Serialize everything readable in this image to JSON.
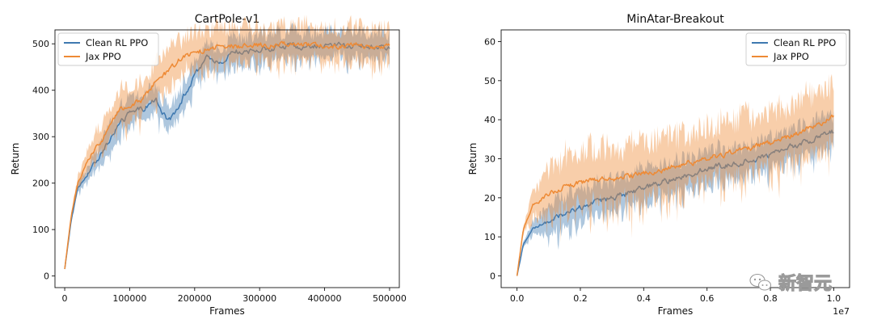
{
  "colors": {
    "clean": "#3f79b0",
    "jax": "#ee8a35"
  },
  "watermark": {
    "text": "新智元",
    "icon": "wechat-icon"
  },
  "chart_data": [
    {
      "type": "line",
      "title": "CartPole-v1",
      "xlabel": "Frames",
      "ylabel": "Return",
      "xlim": [
        -15000,
        515000
      ],
      "ylim": [
        -25,
        530
      ],
      "xticks": [
        0,
        100000,
        200000,
        300000,
        400000,
        500000
      ],
      "xtick_labels": [
        "0",
        "100000",
        "200000",
        "300000",
        "400000",
        "500000"
      ],
      "yticks": [
        0,
        100,
        200,
        300,
        400,
        500
      ],
      "ytick_labels": [
        "0",
        "100",
        "200",
        "300",
        "400",
        "500"
      ],
      "offset_text": "",
      "grid": false,
      "legend": "top-left",
      "series": [
        {
          "name": "Clean RL PPO",
          "color": "#3f79b0",
          "x": [
            0,
            10000,
            20000,
            40000,
            60000,
            80000,
            100000,
            120000,
            140000,
            160000,
            180000,
            200000,
            220000,
            240000,
            260000,
            280000,
            300000,
            350000,
            400000,
            450000,
            500000
          ],
          "y": [
            15,
            120,
            190,
            230,
            270,
            320,
            350,
            360,
            380,
            330,
            380,
            430,
            470,
            460,
            485,
            480,
            490,
            495,
            495,
            497,
            490
          ],
          "band": 35
        },
        {
          "name": "Jax PPO",
          "color": "#ee8a35",
          "x": [
            0,
            10000,
            20000,
            40000,
            60000,
            80000,
            100000,
            120000,
            140000,
            160000,
            180000,
            200000,
            220000,
            240000,
            260000,
            280000,
            300000,
            350000,
            400000,
            450000,
            500000
          ],
          "y": [
            15,
            130,
            200,
            260,
            300,
            350,
            370,
            380,
            420,
            440,
            470,
            480,
            490,
            495,
            495,
            495,
            497,
            497,
            497,
            498,
            492
          ],
          "band": 45
        }
      ]
    },
    {
      "type": "line",
      "title": "MinAtar-Breakout",
      "xlabel": "Frames",
      "ylabel": "Return",
      "xlim": [
        -0.05,
        1.05
      ],
      "ylim": [
        -3,
        63
      ],
      "xticks": [
        0.0,
        0.2,
        0.4,
        0.6,
        0.8,
        1.0
      ],
      "xtick_labels": [
        "0.0",
        "0.2",
        "0.4",
        "0.6",
        "0.8",
        "1.0"
      ],
      "yticks": [
        0,
        10,
        20,
        30,
        40,
        50,
        60
      ],
      "ytick_labels": [
        "0",
        "10",
        "20",
        "30",
        "40",
        "50",
        "60"
      ],
      "offset_text": "1e7",
      "grid": false,
      "legend": "top-right",
      "series": [
        {
          "name": "Clean RL PPO",
          "color": "#3f79b0",
          "x": [
            0,
            0.02,
            0.05,
            0.1,
            0.15,
            0.2,
            0.3,
            0.4,
            0.5,
            0.6,
            0.7,
            0.8,
            0.9,
            1.0
          ],
          "y": [
            0,
            8,
            12,
            14,
            16,
            17.5,
            20,
            22.5,
            25,
            27.5,
            29,
            31,
            34,
            37
          ],
          "band": 5
        },
        {
          "name": "Jax PPO",
          "color": "#ee8a35",
          "x": [
            0,
            0.02,
            0.05,
            0.1,
            0.15,
            0.2,
            0.3,
            0.4,
            0.5,
            0.6,
            0.7,
            0.8,
            0.9,
            1.0
          ],
          "y": [
            0,
            12,
            18,
            21,
            23,
            24,
            25,
            26,
            28,
            30,
            32,
            34,
            37,
            41
          ],
          "band": 9
        }
      ]
    }
  ]
}
